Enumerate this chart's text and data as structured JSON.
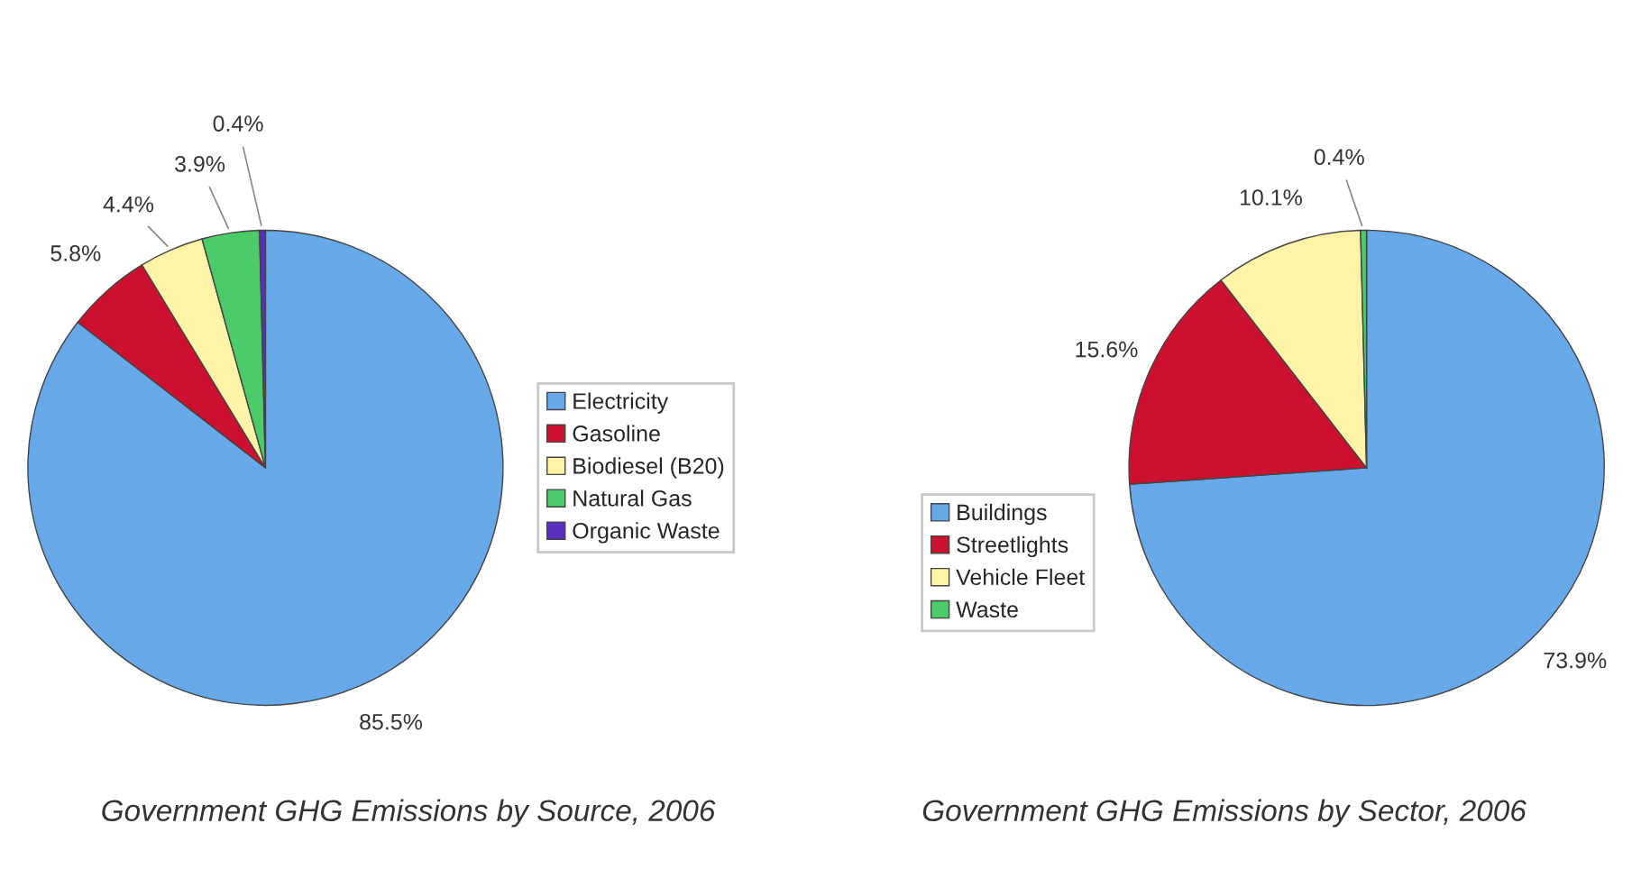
{
  "chart_data": [
    {
      "type": "pie",
      "title": "Government GHG Emissions by Source, 2006",
      "categories": [
        "Electricity",
        "Gasoline",
        "Biodiesel (B20)",
        "Natural Gas",
        "Organic Waste"
      ],
      "values": [
        85.5,
        5.8,
        4.4,
        3.9,
        0.4
      ],
      "value_labels": [
        "85.5%",
        "5.8%",
        "4.4%",
        "3.9%",
        "0.4%"
      ],
      "colors": [
        "#66a8e8",
        "#cc1030",
        "#fff3a8",
        "#4ccb6a",
        "#5a2ec0"
      ],
      "legend": "right"
    },
    {
      "type": "pie",
      "title": "Government GHG Emissions by Sector, 2006",
      "categories": [
        "Buildings",
        "Streetlights",
        "Vehicle Fleet",
        "Waste"
      ],
      "values": [
        73.9,
        15.6,
        10.1,
        0.4
      ],
      "value_labels": [
        "73.9%",
        "15.6%",
        "10.1%",
        "0.4%"
      ],
      "colors": [
        "#66a8e8",
        "#cc1030",
        "#fff3a8",
        "#4ccb6a"
      ],
      "legend": "left"
    }
  ]
}
